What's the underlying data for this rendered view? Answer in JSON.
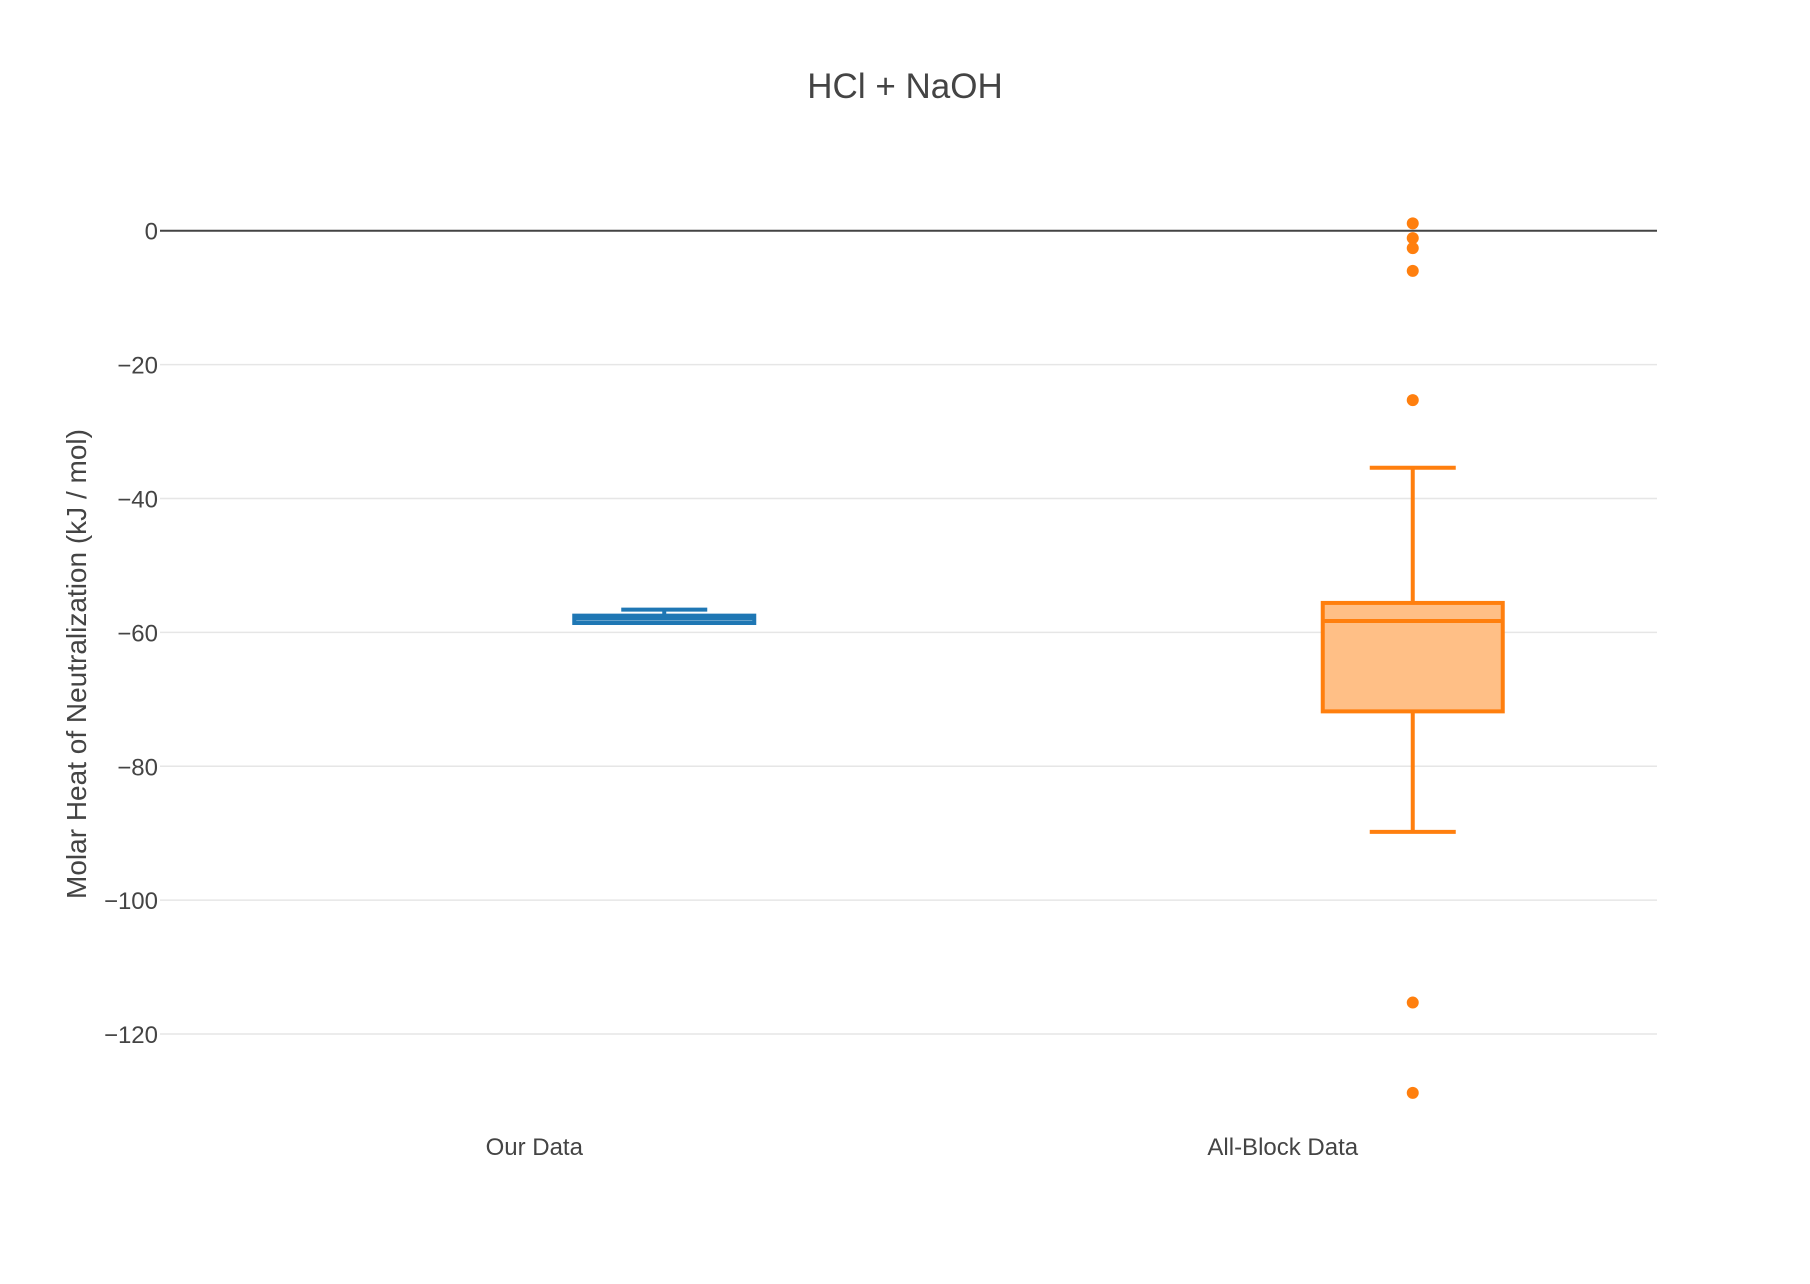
{
  "chart_data": {
    "type": "box",
    "title": "HCl + NaOH",
    "xlabel": "",
    "ylabel": "Molar Heat of Neutralization (kJ / mol)",
    "ylim": [
      -131.5,
      2.5
    ],
    "yticks": [
      0,
      -20,
      -40,
      -60,
      -80,
      -100,
      -120
    ],
    "ytick_labels": [
      "0",
      "−20",
      "−40",
      "−60",
      "−80",
      "−100",
      "−120"
    ],
    "grid": true,
    "legend": "none",
    "categories": [
      "Our Data",
      "All-Block Data"
    ],
    "series": [
      {
        "category": "Our Data",
        "color": "#1f77b4",
        "fill": "#8fbbd9",
        "lowerfence": -58.6,
        "q1": -58.6,
        "median": -57.9,
        "q3": -57.5,
        "upperfence": -56.6,
        "outliers": []
      },
      {
        "category": "All-Block Data",
        "color": "#ff7f0e",
        "fill": "#ffbf86",
        "lowerfence": -89.8,
        "q1": -71.8,
        "median": -58.3,
        "q3": -55.6,
        "upperfence": -35.4,
        "outliers": [
          1.1,
          -1.1,
          -2.6,
          -6.0,
          -25.3,
          -115.3,
          -128.8
        ]
      }
    ]
  }
}
